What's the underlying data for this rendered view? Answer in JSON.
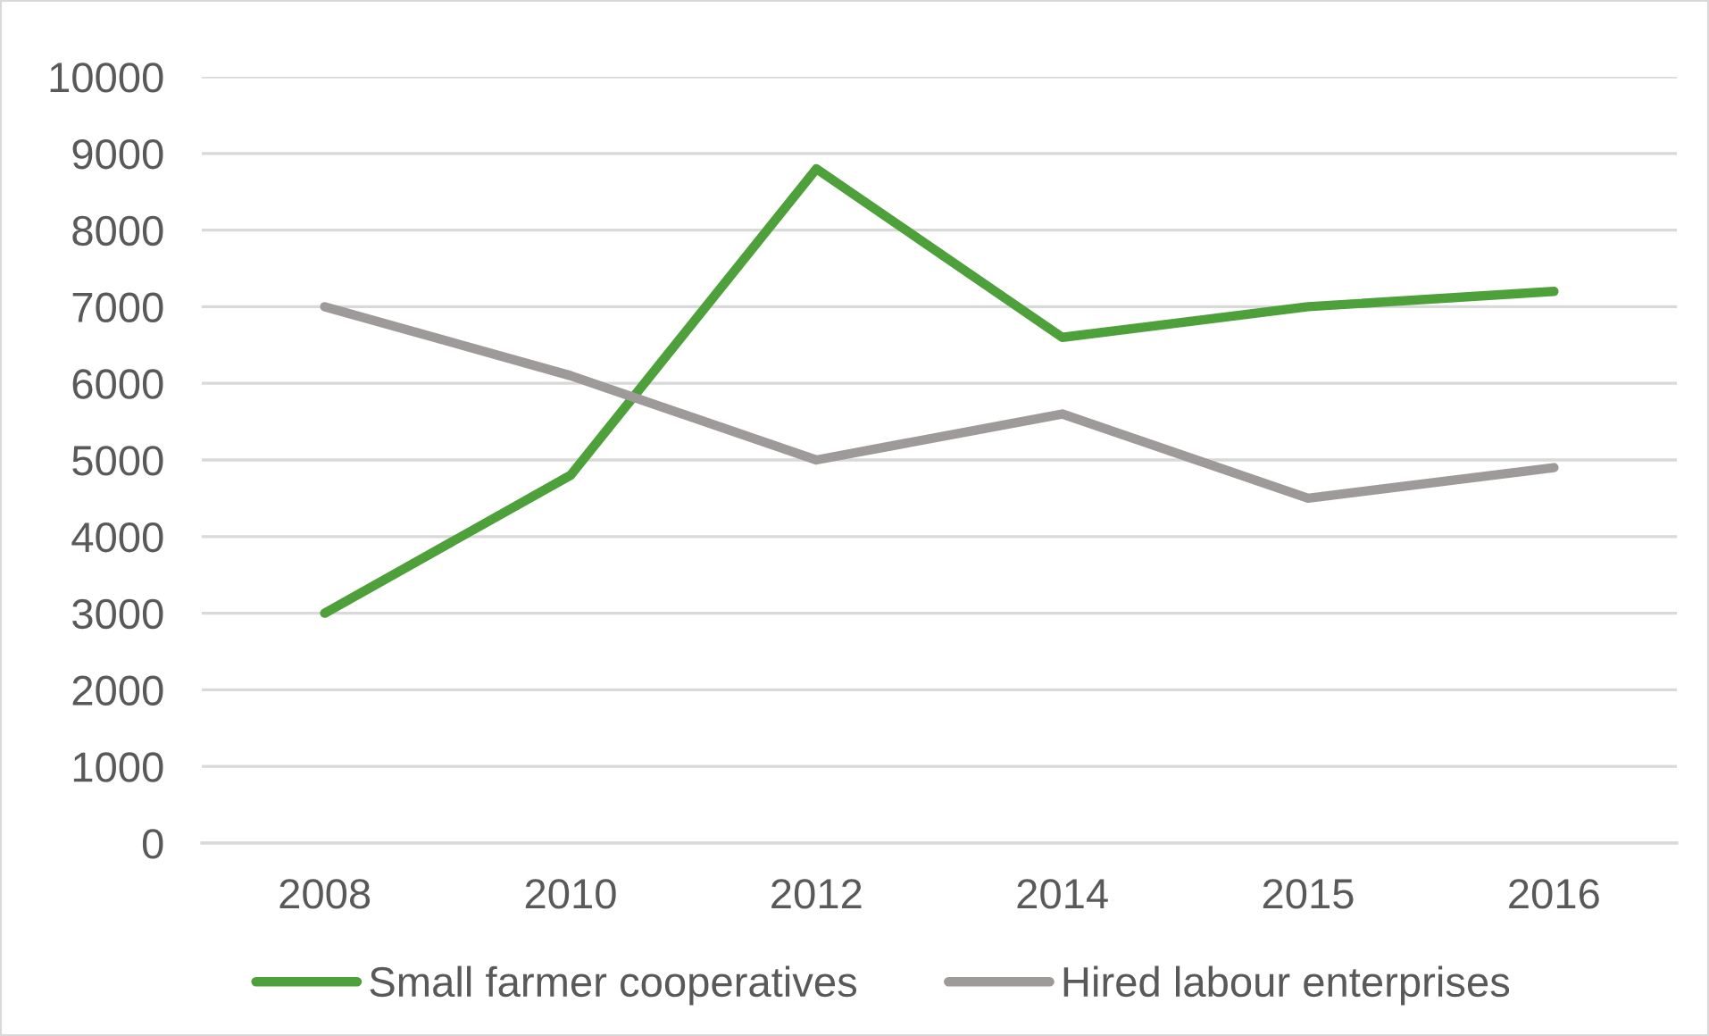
{
  "chart_data": {
    "type": "line",
    "categories": [
      "2008",
      "2010",
      "2012",
      "2014",
      "2015",
      "2016"
    ],
    "series": [
      {
        "name": "Small farmer cooperatives",
        "color": "#4ea03a",
        "values": [
          3000,
          4800,
          8800,
          6600,
          7000,
          7200
        ]
      },
      {
        "name": "Hired labour enterprises",
        "color": "#9e9a9a",
        "values": [
          7000,
          6100,
          5000,
          5600,
          4500,
          4900
        ]
      }
    ],
    "ylim": [
      0,
      10000
    ],
    "yticks": [
      0,
      1000,
      2000,
      3000,
      4000,
      5000,
      6000,
      7000,
      8000,
      9000,
      10000
    ],
    "grid": "y",
    "legend": "bottom"
  }
}
